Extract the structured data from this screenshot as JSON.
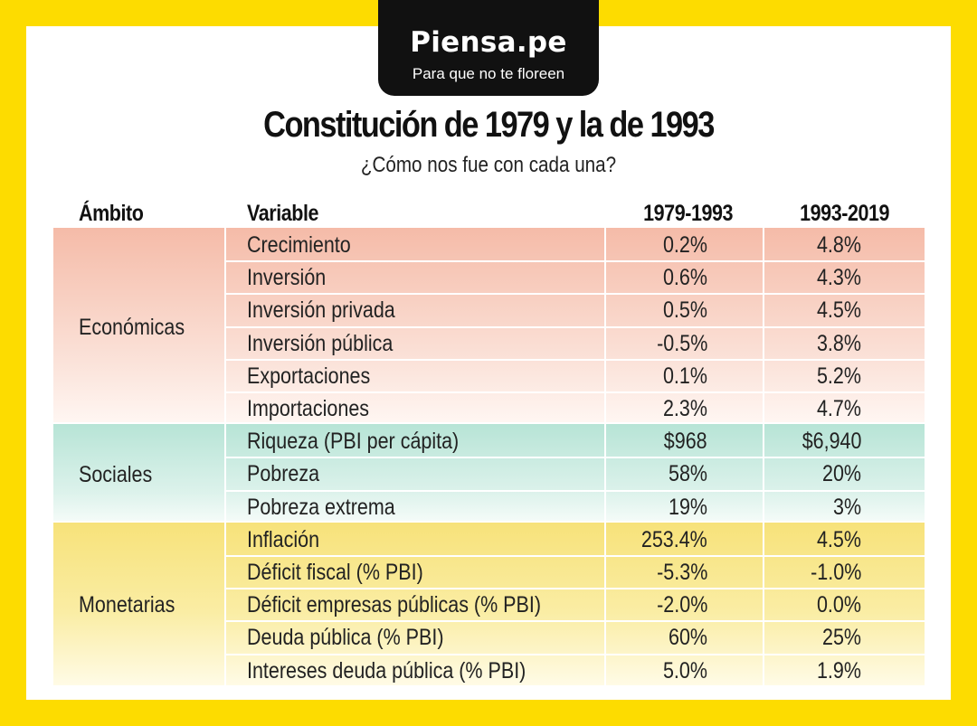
{
  "brand": {
    "name": "Piensa.pe",
    "tagline": "Para que no te floreen"
  },
  "title": "Constitución de 1979 y la de 1993",
  "subtitle": "¿Cómo nos fue con cada una?",
  "headers": {
    "ambito": "Ámbito",
    "variable": "Variable",
    "col1": "1979-1993",
    "col2": "1993-2019"
  },
  "groups": [
    {
      "ambito": "Económicas",
      "rows": [
        {
          "variable": "Crecimiento",
          "v1": "0.2%",
          "v2": "4.8%"
        },
        {
          "variable": "Inversión",
          "v1": "0.6%",
          "v2": "4.3%"
        },
        {
          "variable": "Inversión privada",
          "v1": "0.5%",
          "v2": "4.5%"
        },
        {
          "variable": "Inversión pública",
          "v1": "-0.5%",
          "v2": "3.8%"
        },
        {
          "variable": "Exportaciones",
          "v1": "0.1%",
          "v2": "5.2%"
        },
        {
          "variable": "Importaciones",
          "v1": "2.3%",
          "v2": "4.7%"
        }
      ]
    },
    {
      "ambito": "Sociales",
      "rows": [
        {
          "variable": "Riqueza (PBI per cápita)",
          "v1": "$968",
          "v2": "$6,940"
        },
        {
          "variable": "Pobreza",
          "v1": "58%",
          "v2": "20%"
        },
        {
          "variable": "Pobreza extrema",
          "v1": "19%",
          "v2": "3%"
        }
      ]
    },
    {
      "ambito": "Monetarias",
      "rows": [
        {
          "variable": "Inflación",
          "v1": "253.4%",
          "v2": "4.5%"
        },
        {
          "variable": "Déficit fiscal (% PBI)",
          "v1": "-5.3%",
          "v2": "-1.0%"
        },
        {
          "variable": "Déficit empresas públicas (% PBI)",
          "v1": "-2.0%",
          "v2": "0.0%"
        },
        {
          "variable": "Deuda pública (% PBI)",
          "v1": "60%",
          "v2": "25%"
        },
        {
          "variable": "Intereses deuda pública (% PBI)",
          "v1": "5.0%",
          "v2": "1.9%"
        }
      ]
    }
  ],
  "colors": {
    "frame": "#FDDC00",
    "economicas": "#F5BBA8",
    "sociales": "#B7E4D6",
    "monetarias": "#F7E27A"
  }
}
